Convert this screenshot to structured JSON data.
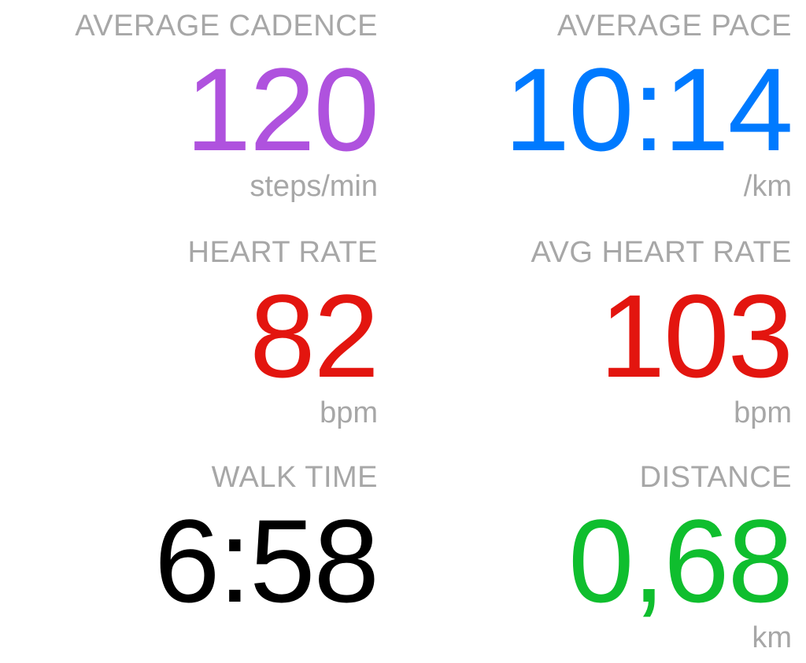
{
  "metrics": {
    "average_cadence": {
      "label": "AVERAGE CADENCE",
      "value": "120",
      "unit": "steps/min",
      "color": "#af52de"
    },
    "average_pace": {
      "label": "AVERAGE PACE",
      "value": "10:14",
      "unit": "/km",
      "color": "#007aff"
    },
    "heart_rate": {
      "label": "HEART RATE",
      "value": "82",
      "unit": "bpm",
      "color": "#e3150f"
    },
    "avg_heart_rate": {
      "label": "AVG HEART RATE",
      "value": "103",
      "unit": "bpm",
      "color": "#e3150f"
    },
    "walk_time": {
      "label": "WALK TIME",
      "value": "6:58",
      "unit": "",
      "color": "#000000"
    },
    "distance": {
      "label": "DISTANCE",
      "value": "0,68",
      "unit": "km",
      "color": "#0fbe2e"
    }
  }
}
